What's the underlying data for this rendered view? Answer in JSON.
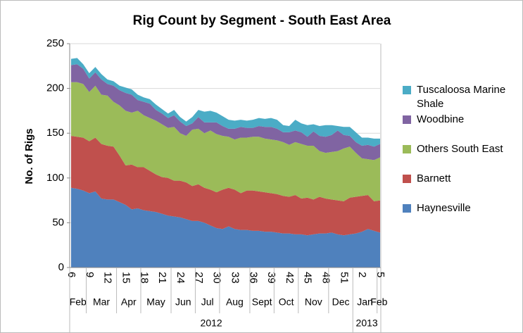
{
  "chart_data": {
    "type": "stacked_area",
    "title": "Rig Count by Segment - South East Area",
    "y_label": "No. of Rigs",
    "categories": [
      "6",
      null,
      null,
      "9",
      null,
      null,
      "12",
      null,
      null,
      "15",
      null,
      null,
      "18",
      null,
      null,
      "21",
      null,
      null,
      "24",
      null,
      null,
      "27",
      null,
      null,
      "30",
      null,
      null,
      "33",
      null,
      null,
      "36",
      null,
      null,
      "39",
      null,
      null,
      "42",
      null,
      null,
      "45",
      null,
      null,
      "48",
      null,
      null,
      "51",
      null,
      null,
      "2",
      null,
      null,
      "5"
    ],
    "months": [
      "Feb",
      "Feb",
      "Feb",
      "Mar",
      "Mar",
      "Mar",
      "Mar",
      "Mar",
      "Apr",
      "Apr",
      "Apr",
      "Apr",
      "May",
      "May",
      "May",
      "May",
      "May",
      "Jun",
      "Jun",
      "Jun",
      "Jun",
      "Jul",
      "Jul",
      "Jul",
      "Jul",
      "Aug",
      "Aug",
      "Aug",
      "Aug",
      "Aug",
      "Sept",
      "Sept",
      "Sept",
      "Sept",
      "Oct",
      "Oct",
      "Oct",
      "Oct",
      "Nov",
      "Nov",
      "Nov",
      "Nov",
      "Nov",
      "Dec",
      "Dec",
      "Dec",
      "Dec",
      "Jan",
      "Jan",
      "Jan",
      "Jan",
      "Feb"
    ],
    "years": [
      "2012",
      "2012",
      "2012",
      "2012",
      "2012",
      "2012",
      "2012",
      "2012",
      "2012",
      "2012",
      "2012",
      "2012",
      "2012",
      "2012",
      "2012",
      "2012",
      "2012",
      "2012",
      "2012",
      "2012",
      "2012",
      "2012",
      "2012",
      "2012",
      "2012",
      "2012",
      "2012",
      "2012",
      "2012",
      "2012",
      "2012",
      "2012",
      "2012",
      "2012",
      "2012",
      "2012",
      "2012",
      "2012",
      "2012",
      "2012",
      "2012",
      "2012",
      "2012",
      "2012",
      "2012",
      "2012",
      "2012",
      "2013",
      "2013",
      "2013",
      "2013",
      "2013"
    ],
    "series": [
      {
        "name": "Haynesville",
        "color": "#4f81bd",
        "values": [
          89,
          88,
          86,
          83,
          85,
          77,
          76,
          76,
          73,
          70,
          65,
          66,
          64,
          63,
          62,
          60,
          58,
          57,
          56,
          54,
          52,
          52,
          50,
          47,
          44,
          43,
          46,
          43,
          42,
          42,
          41,
          41,
          40,
          40,
          39,
          38,
          38,
          37,
          37,
          36,
          37,
          38,
          38,
          39,
          37,
          36,
          37,
          38,
          40,
          43,
          41,
          39
        ]
      },
      {
        "name": "Barnett",
        "color": "#c0504d",
        "values": [
          58,
          58,
          59,
          58,
          60,
          61,
          60,
          59,
          52,
          44,
          50,
          46,
          48,
          45,
          42,
          41,
          42,
          40,
          41,
          41,
          39,
          41,
          39,
          40,
          40,
          44,
          43,
          44,
          41,
          44,
          45,
          44,
          44,
          43,
          43,
          42,
          41,
          44,
          40,
          42,
          39,
          41,
          39,
          37,
          38,
          38,
          41,
          41,
          40,
          38,
          33,
          36
        ]
      },
      {
        "name": "Others South East",
        "color": "#9bbb59",
        "values": [
          60,
          61,
          60,
          55,
          58,
          55,
          56,
          50,
          56,
          61,
          58,
          63,
          58,
          59,
          60,
          59,
          56,
          60,
          53,
          52,
          63,
          62,
          61,
          66,
          65,
          60,
          57,
          56,
          62,
          59,
          60,
          61,
          60,
          60,
          60,
          60,
          58,
          59,
          61,
          58,
          60,
          51,
          51,
          53,
          55,
          59,
          57,
          49,
          42,
          40,
          46,
          48
        ]
      },
      {
        "name": "Woodbine",
        "color": "#8064a2",
        "values": [
          19,
          20,
          17,
          15,
          15,
          17,
          13,
          18,
          17,
          20,
          20,
          12,
          15,
          16,
          12,
          12,
          11,
          13,
          13,
          11,
          7,
          13,
          12,
          9,
          13,
          11,
          9,
          12,
          12,
          11,
          10,
          12,
          13,
          14,
          13,
          11,
          14,
          13,
          13,
          10,
          16,
          17,
          18,
          19,
          23,
          15,
          12,
          12,
          14,
          16,
          15,
          15
        ]
      },
      {
        "name": "Tuscaloosa Marine Shale",
        "color": "#4bacc6",
        "values": [
          7,
          7,
          5,
          6,
          6,
          6,
          5,
          5,
          5,
          6,
          6,
          6,
          5,
          5,
          6,
          5,
          5,
          6,
          5,
          5,
          7,
          8,
          12,
          13,
          11,
          11,
          10,
          9,
          8,
          8,
          9,
          9,
          9,
          10,
          10,
          8,
          7,
          12,
          10,
          13,
          8,
          11,
          13,
          11,
          5,
          9,
          10,
          11,
          9,
          8,
          9,
          6
        ]
      }
    ],
    "ylim": [
      0,
      250
    ],
    "yticks": [
      0,
      50,
      100,
      150,
      200,
      250
    ],
    "grid": true,
    "legend": "right"
  }
}
